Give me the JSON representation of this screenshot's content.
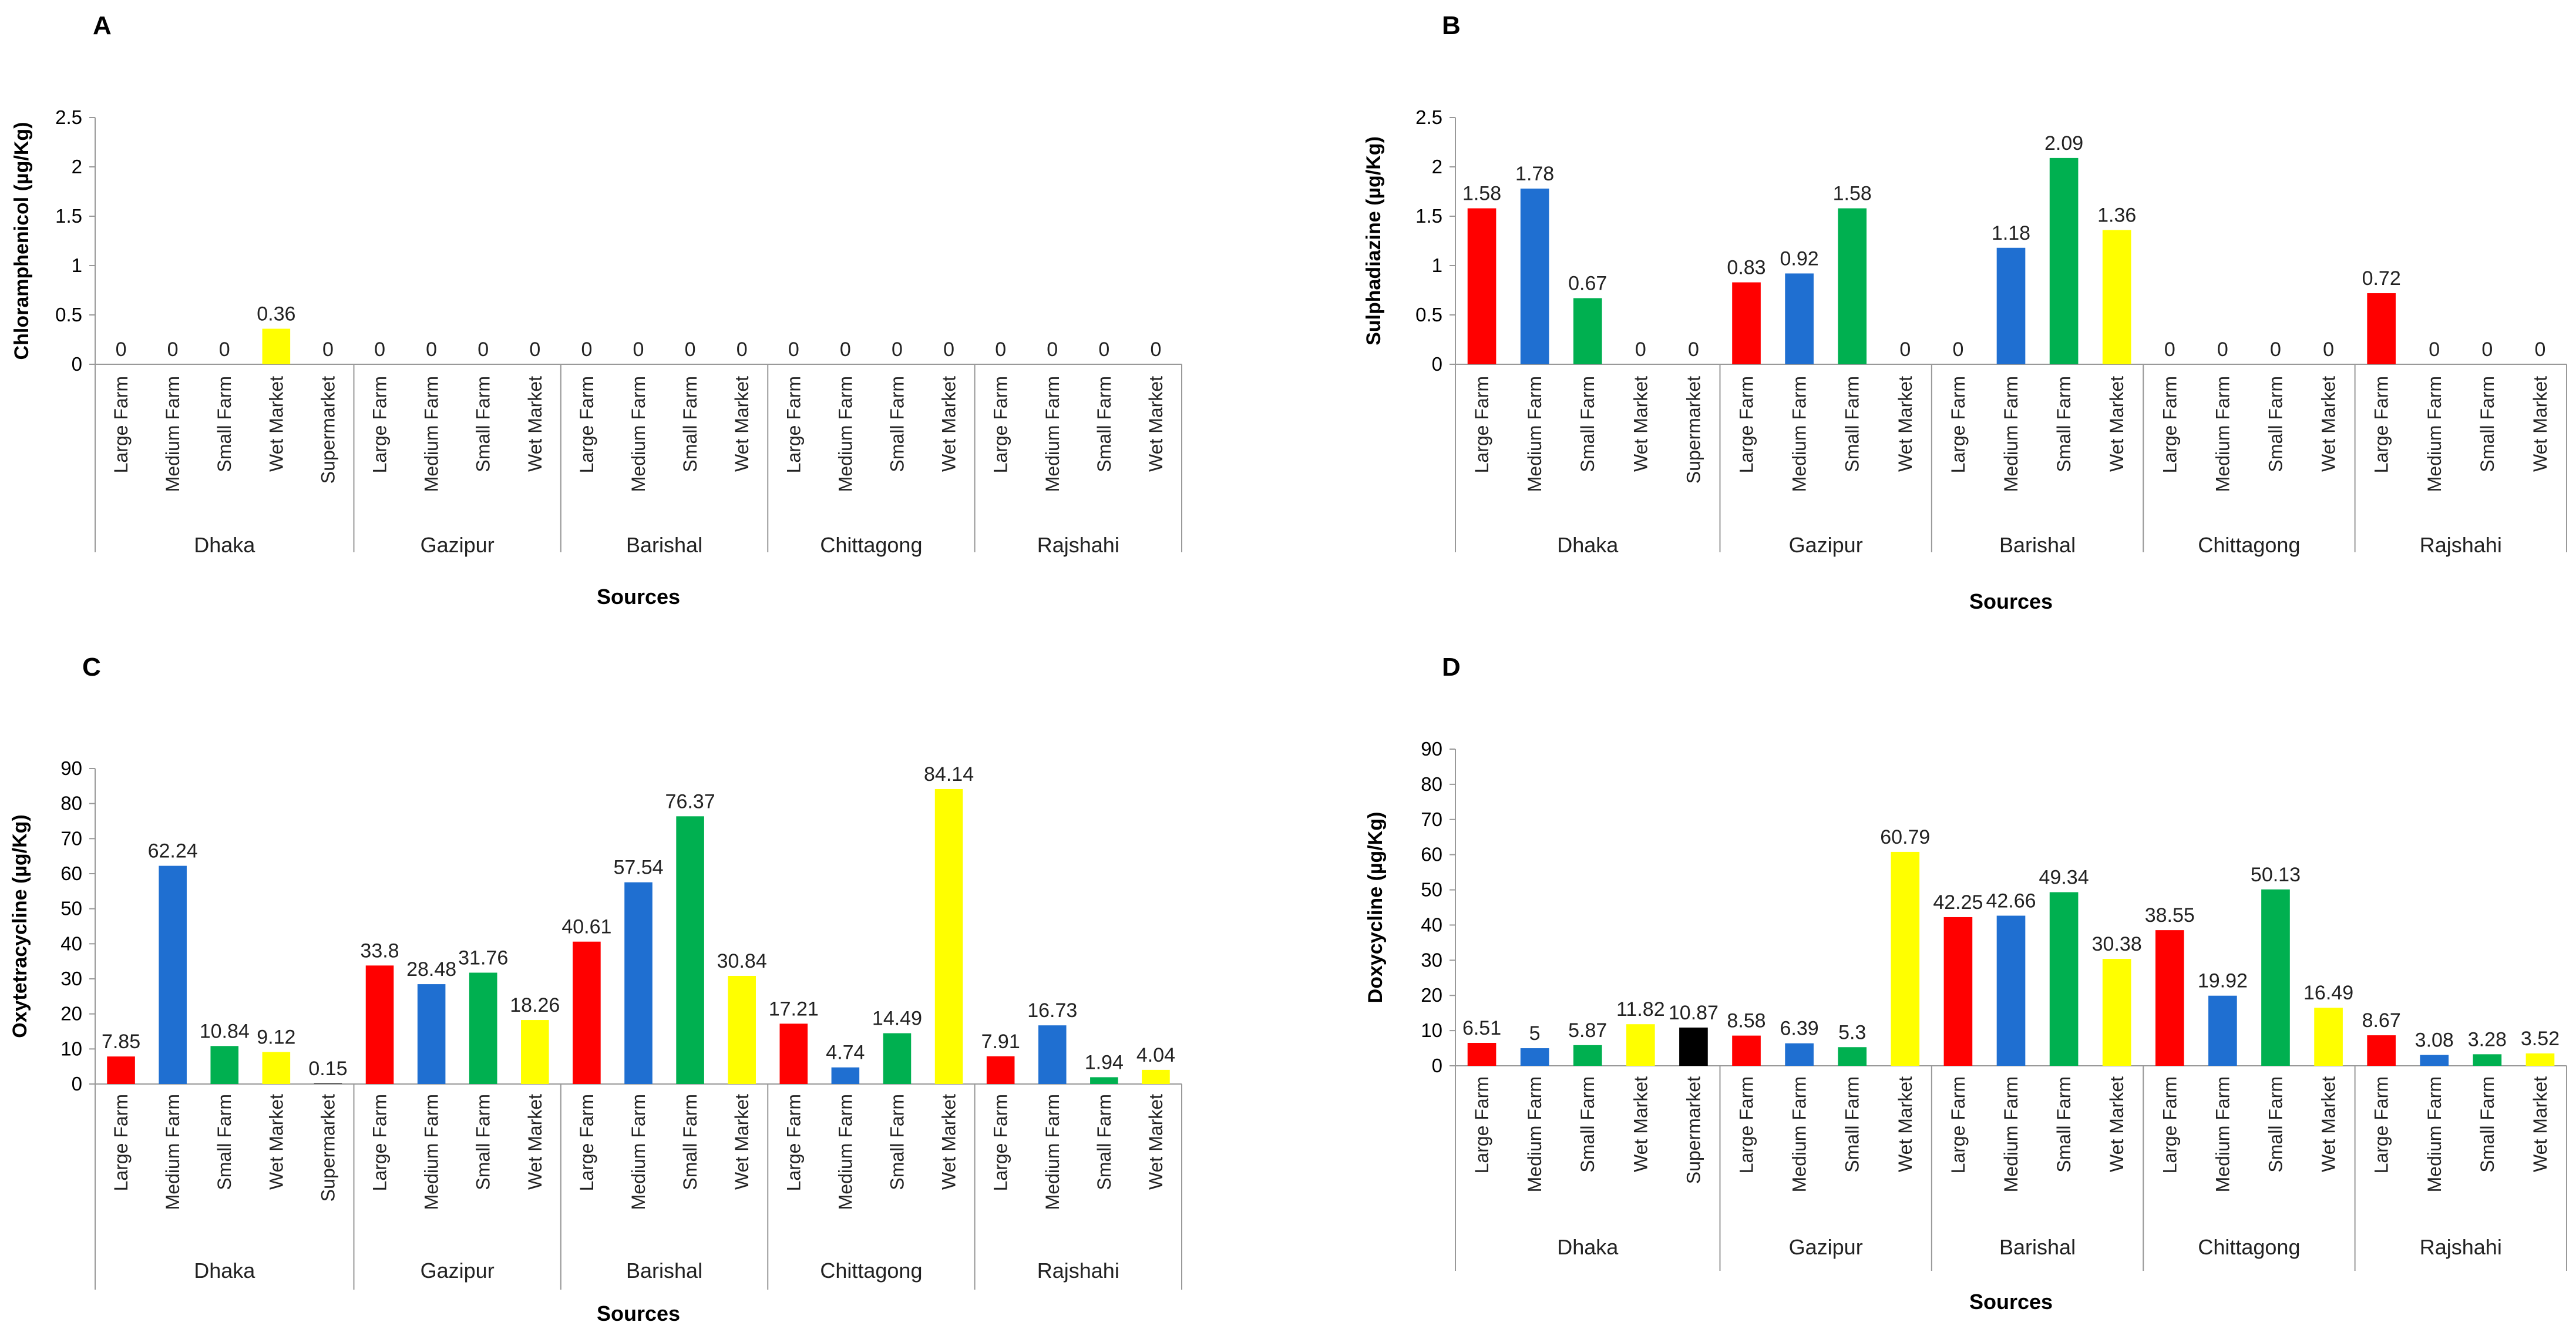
{
  "chart_data": [
    {
      "panel": "A",
      "type": "bar",
      "ylabel": "Chloramphenicol (µg/Kg)",
      "xlabel": "Sources",
      "ylim": [
        0,
        2.5
      ],
      "yticks": [
        "0",
        "0.5",
        "1",
        "1.5",
        "2",
        "2.5"
      ],
      "groups": [
        {
          "name": "Dhaka",
          "bars": [
            {
              "category": "Large Farm",
              "value": 0,
              "label": "0",
              "color": "#ff0000"
            },
            {
              "category": "Medium Farm",
              "value": 0,
              "label": "0",
              "color": "#1f6fd1"
            },
            {
              "category": "Small Farm",
              "value": 0,
              "label": "0",
              "color": "#00b050"
            },
            {
              "category": "Wet Market",
              "value": 0.36,
              "label": "0.36",
              "color": "#ffff00"
            },
            {
              "category": "Supermarket",
              "value": 0,
              "label": "0",
              "color": "#000000"
            }
          ]
        },
        {
          "name": "Gazipur",
          "bars": [
            {
              "category": "Large Farm",
              "value": 0,
              "label": "0",
              "color": "#ff0000"
            },
            {
              "category": "Medium Farm",
              "value": 0,
              "label": "0",
              "color": "#1f6fd1"
            },
            {
              "category": "Small Farm",
              "value": 0,
              "label": "0",
              "color": "#00b050"
            },
            {
              "category": "Wet Market",
              "value": 0,
              "label": "0",
              "color": "#ffff00"
            }
          ]
        },
        {
          "name": "Barishal",
          "bars": [
            {
              "category": "Large Farm",
              "value": 0,
              "label": "0",
              "color": "#ff0000"
            },
            {
              "category": "Medium Farm",
              "value": 0,
              "label": "0",
              "color": "#1f6fd1"
            },
            {
              "category": "Small Farm",
              "value": 0,
              "label": "0",
              "color": "#00b050"
            },
            {
              "category": "Wet Market",
              "value": 0,
              "label": "0",
              "color": "#ffff00"
            }
          ]
        },
        {
          "name": "Chittagong",
          "bars": [
            {
              "category": "Large Farm",
              "value": 0,
              "label": "0",
              "color": "#ff0000"
            },
            {
              "category": "Medium Farm",
              "value": 0,
              "label": "0",
              "color": "#1f6fd1"
            },
            {
              "category": "Small Farm",
              "value": 0,
              "label": "0",
              "color": "#00b050"
            },
            {
              "category": "Wet Market",
              "value": 0,
              "label": "0",
              "color": "#ffff00"
            }
          ]
        },
        {
          "name": "Rajshahi",
          "bars": [
            {
              "category": "Large Farm",
              "value": 0,
              "label": "0",
              "color": "#ff0000"
            },
            {
              "category": "Medium Farm",
              "value": 0,
              "label": "0",
              "color": "#1f6fd1"
            },
            {
              "category": "Small Farm",
              "value": 0,
              "label": "0",
              "color": "#00b050"
            },
            {
              "category": "Wet Market",
              "value": 0,
              "label": "0",
              "color": "#ffff00"
            }
          ]
        }
      ]
    },
    {
      "panel": "B",
      "type": "bar",
      "ylabel": "Sulphadiazine  (µg/Kg)",
      "xlabel": "Sources",
      "ylim": [
        0,
        2.5
      ],
      "yticks": [
        "0",
        "0.5",
        "1",
        "1.5",
        "2",
        "2.5"
      ],
      "groups": [
        {
          "name": "Dhaka",
          "bars": [
            {
              "category": "Large Farm",
              "value": 1.58,
              "label": "1.58",
              "color": "#ff0000"
            },
            {
              "category": "Medium Farm",
              "value": 1.78,
              "label": "1.78",
              "color": "#1f6fd1"
            },
            {
              "category": "Small Farm",
              "value": 0.67,
              "label": "0.67",
              "color": "#00b050"
            },
            {
              "category": "Wet Market",
              "value": 0,
              "label": "0",
              "color": "#ffff00"
            },
            {
              "category": "Supermarket",
              "value": 0,
              "label": "0",
              "color": "#000000"
            }
          ]
        },
        {
          "name": "Gazipur",
          "bars": [
            {
              "category": "Large Farm",
              "value": 0.83,
              "label": "0.83",
              "color": "#ff0000"
            },
            {
              "category": "Medium Farm",
              "value": 0.92,
              "label": "0.92",
              "color": "#1f6fd1"
            },
            {
              "category": "Small Farm",
              "value": 1.58,
              "label": "1.58",
              "color": "#00b050"
            },
            {
              "category": "Wet Market",
              "value": 0,
              "label": "0",
              "color": "#ffff00"
            }
          ]
        },
        {
          "name": "Barishal",
          "bars": [
            {
              "category": "Large Farm",
              "value": 0,
              "label": "0",
              "color": "#ff0000"
            },
            {
              "category": "Medium Farm",
              "value": 1.18,
              "label": "1.18",
              "color": "#1f6fd1"
            },
            {
              "category": "Small Farm",
              "value": 2.09,
              "label": "2.09",
              "color": "#00b050"
            },
            {
              "category": "Wet Market",
              "value": 1.36,
              "label": "1.36",
              "color": "#ffff00"
            }
          ]
        },
        {
          "name": "Chittagong",
          "bars": [
            {
              "category": "Large Farm",
              "value": 0,
              "label": "0",
              "color": "#ff0000"
            },
            {
              "category": "Medium Farm",
              "value": 0,
              "label": "0",
              "color": "#1f6fd1"
            },
            {
              "category": "Small Farm",
              "value": 0,
              "label": "0",
              "color": "#00b050"
            },
            {
              "category": "Wet Market",
              "value": 0,
              "label": "0",
              "color": "#ffff00"
            }
          ]
        },
        {
          "name": "Rajshahi",
          "bars": [
            {
              "category": "Large Farm",
              "value": 0.72,
              "label": "0.72",
              "color": "#ff0000"
            },
            {
              "category": "Medium Farm",
              "value": 0,
              "label": "0",
              "color": "#1f6fd1"
            },
            {
              "category": "Small Farm",
              "value": 0,
              "label": "0",
              "color": "#00b050"
            },
            {
              "category": "Wet Market",
              "value": 0,
              "label": "0",
              "color": "#ffff00"
            }
          ]
        }
      ]
    },
    {
      "panel": "C",
      "type": "bar",
      "ylabel": "Oxytetracycline (µg/Kg)",
      "xlabel": "Sources",
      "ylim": [
        0,
        90
      ],
      "yticks": [
        "0",
        "10",
        "20",
        "30",
        "40",
        "50",
        "60",
        "70",
        "80",
        "90"
      ],
      "groups": [
        {
          "name": "Dhaka",
          "bars": [
            {
              "category": "Large Farm",
              "value": 7.85,
              "label": "7.85",
              "color": "#ff0000"
            },
            {
              "category": "Medium Farm",
              "value": 62.24,
              "label": "62.24",
              "color": "#1f6fd1"
            },
            {
              "category": "Small Farm",
              "value": 10.84,
              "label": "10.84",
              "color": "#00b050"
            },
            {
              "category": "Wet Market",
              "value": 9.12,
              "label": "9.12",
              "color": "#ffff00"
            },
            {
              "category": "Supermarket",
              "value": 0.15,
              "label": "0.15",
              "color": "#000000"
            }
          ]
        },
        {
          "name": "Gazipur",
          "bars": [
            {
              "category": "Large Farm",
              "value": 33.8,
              "label": "33.8",
              "color": "#ff0000"
            },
            {
              "category": "Medium Farm",
              "value": 28.48,
              "label": "28.48",
              "color": "#1f6fd1"
            },
            {
              "category": "Small Farm",
              "value": 31.76,
              "label": "31.76",
              "color": "#00b050"
            },
            {
              "category": "Wet Market",
              "value": 18.26,
              "label": "18.26",
              "color": "#ffff00"
            }
          ]
        },
        {
          "name": "Barishal",
          "bars": [
            {
              "category": "Large Farm",
              "value": 40.61,
              "label": "40.61",
              "color": "#ff0000"
            },
            {
              "category": "Medium Farm",
              "value": 57.54,
              "label": "57.54",
              "color": "#1f6fd1"
            },
            {
              "category": "Small Farm",
              "value": 76.37,
              "label": "76.37",
              "color": "#00b050"
            },
            {
              "category": "Wet Market",
              "value": 30.84,
              "label": "30.84",
              "color": "#ffff00"
            }
          ]
        },
        {
          "name": "Chittagong",
          "bars": [
            {
              "category": "Large Farm",
              "value": 17.21,
              "label": "17.21",
              "color": "#ff0000"
            },
            {
              "category": "Medium Farm",
              "value": 4.74,
              "label": "4.74",
              "color": "#1f6fd1"
            },
            {
              "category": "Small Farm",
              "value": 14.49,
              "label": "14.49",
              "color": "#00b050"
            },
            {
              "category": "Wet Market",
              "value": 84.14,
              "label": "84.14",
              "color": "#ffff00"
            }
          ]
        },
        {
          "name": "Rajshahi",
          "bars": [
            {
              "category": "Large Farm",
              "value": 7.91,
              "label": "7.91",
              "color": "#ff0000"
            },
            {
              "category": "Medium Farm",
              "value": 16.73,
              "label": "16.73",
              "color": "#1f6fd1"
            },
            {
              "category": "Small Farm",
              "value": 1.94,
              "label": "1.94",
              "color": "#00b050"
            },
            {
              "category": "Wet Market",
              "value": 4.04,
              "label": "4.04",
              "color": "#ffff00"
            }
          ]
        }
      ]
    },
    {
      "panel": "D",
      "type": "bar",
      "ylabel": "Doxycycline (µg/Kg)",
      "xlabel": "Sources",
      "ylim": [
        0,
        90
      ],
      "yticks": [
        "0",
        "10",
        "20",
        "30",
        "40",
        "50",
        "60",
        "70",
        "80",
        "90"
      ],
      "groups": [
        {
          "name": "Dhaka",
          "bars": [
            {
              "category": "Large Farm",
              "value": 6.51,
              "label": "6.51",
              "color": "#ff0000"
            },
            {
              "category": "Medium Farm",
              "value": 5,
              "label": "5",
              "color": "#1f6fd1"
            },
            {
              "category": "Small Farm",
              "value": 5.87,
              "label": "5.87",
              "color": "#00b050"
            },
            {
              "category": "Wet Market",
              "value": 11.82,
              "label": "11.82",
              "color": "#ffff00"
            },
            {
              "category": "Supermarket",
              "value": 10.87,
              "label": "10.87",
              "color": "#000000"
            }
          ]
        },
        {
          "name": "Gazipur",
          "bars": [
            {
              "category": "Large Farm",
              "value": 8.58,
              "label": "8.58",
              "color": "#ff0000"
            },
            {
              "category": "Medium Farm",
              "value": 6.39,
              "label": "6.39",
              "color": "#1f6fd1"
            },
            {
              "category": "Small Farm",
              "value": 5.3,
              "label": "5.3",
              "color": "#00b050"
            },
            {
              "category": "Wet Market",
              "value": 60.79,
              "label": "60.79",
              "color": "#ffff00"
            }
          ]
        },
        {
          "name": "Barishal",
          "bars": [
            {
              "category": "Large Farm",
              "value": 42.25,
              "label": "42.25",
              "color": "#ff0000"
            },
            {
              "category": "Medium Farm",
              "value": 42.66,
              "label": "42.66",
              "color": "#1f6fd1"
            },
            {
              "category": "Small Farm",
              "value": 49.34,
              "label": "49.34",
              "color": "#00b050"
            },
            {
              "category": "Wet Market",
              "value": 30.38,
              "label": "30.38",
              "color": "#ffff00"
            }
          ]
        },
        {
          "name": "Chittagong",
          "bars": [
            {
              "category": "Large Farm",
              "value": 38.55,
              "label": "38.55",
              "color": "#ff0000"
            },
            {
              "category": "Medium Farm",
              "value": 19.92,
              "label": "19.92",
              "color": "#1f6fd1"
            },
            {
              "category": "Small Farm",
              "value": 50.13,
              "label": "50.13",
              "color": "#00b050"
            },
            {
              "category": "Wet Market",
              "value": 16.49,
              "label": "16.49",
              "color": "#ffff00"
            }
          ]
        },
        {
          "name": "Rajshahi",
          "bars": [
            {
              "category": "Large Farm",
              "value": 8.67,
              "label": "8.67",
              "color": "#ff0000"
            },
            {
              "category": "Medium Farm",
              "value": 3.08,
              "label": "3.08",
              "color": "#1f6fd1"
            },
            {
              "category": "Small Farm",
              "value": 3.28,
              "label": "3.28",
              "color": "#00b050"
            },
            {
              "category": "Wet Market",
              "value": 3.52,
              "label": "3.52",
              "color": "#ffff00"
            }
          ]
        }
      ]
    }
  ]
}
